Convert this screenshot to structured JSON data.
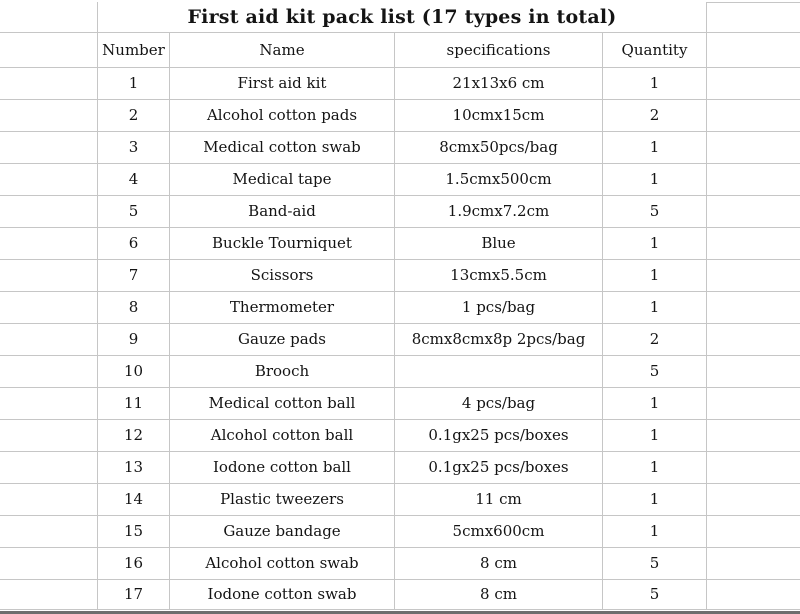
{
  "sheet": {
    "title": "First aid kit pack list (17 types in total)",
    "total_types": 17
  },
  "columns": {
    "number": "Number",
    "name": "Name",
    "specifications": "specifications",
    "quantity": "Quantity"
  },
  "rows": [
    {
      "number": "1",
      "name": "First aid kit",
      "specifications": "21x13x6 cm",
      "quantity": "1"
    },
    {
      "number": "2",
      "name": "Alcohol cotton pads",
      "specifications": "10cmx15cm",
      "quantity": "2"
    },
    {
      "number": "3",
      "name": "Medical cotton swab",
      "specifications": "8cmx50pcs/bag",
      "quantity": "1"
    },
    {
      "number": "4",
      "name": "Medical tape",
      "specifications": "1.5cmx500cm",
      "quantity": "1"
    },
    {
      "number": "5",
      "name": "Band-aid",
      "specifications": "1.9cmx7.2cm",
      "quantity": "5"
    },
    {
      "number": "6",
      "name": "Buckle Tourniquet",
      "specifications": "Blue",
      "quantity": "1"
    },
    {
      "number": "7",
      "name": "Scissors",
      "specifications": "13cmx5.5cm",
      "quantity": "1"
    },
    {
      "number": "8",
      "name": "Thermometer",
      "specifications": "1 pcs/bag",
      "quantity": "1"
    },
    {
      "number": "9",
      "name": "Gauze pads",
      "specifications": "8cmx8cmx8p 2pcs/bag",
      "quantity": "2"
    },
    {
      "number": "10",
      "name": "Brooch",
      "specifications": "",
      "quantity": "5"
    },
    {
      "number": "11",
      "name": "Medical cotton ball",
      "specifications": "4 pcs/bag",
      "quantity": "1"
    },
    {
      "number": "12",
      "name": "Alcohol cotton ball",
      "specifications": "0.1gx25 pcs/boxes",
      "quantity": "1"
    },
    {
      "number": "13",
      "name": "Iodone cotton ball",
      "specifications": "0.1gx25 pcs/boxes",
      "quantity": "1"
    },
    {
      "number": "14",
      "name": "Plastic tweezers",
      "specifications": "11 cm",
      "quantity": "1"
    },
    {
      "number": "15",
      "name": "Gauze bandage",
      "specifications": "5cmx600cm",
      "quantity": "1"
    },
    {
      "number": "16",
      "name": "Alcohol cotton swab",
      "specifications": "8 cm",
      "quantity": "5"
    },
    {
      "number": "17",
      "name": "Iodone cotton swab",
      "specifications": "8 cm",
      "quantity": "5"
    }
  ],
  "colors": {
    "gridline": "#c6c6c6",
    "text": "#141414",
    "background": "#ffffff",
    "bottom_edge": "#6e6e6e"
  }
}
